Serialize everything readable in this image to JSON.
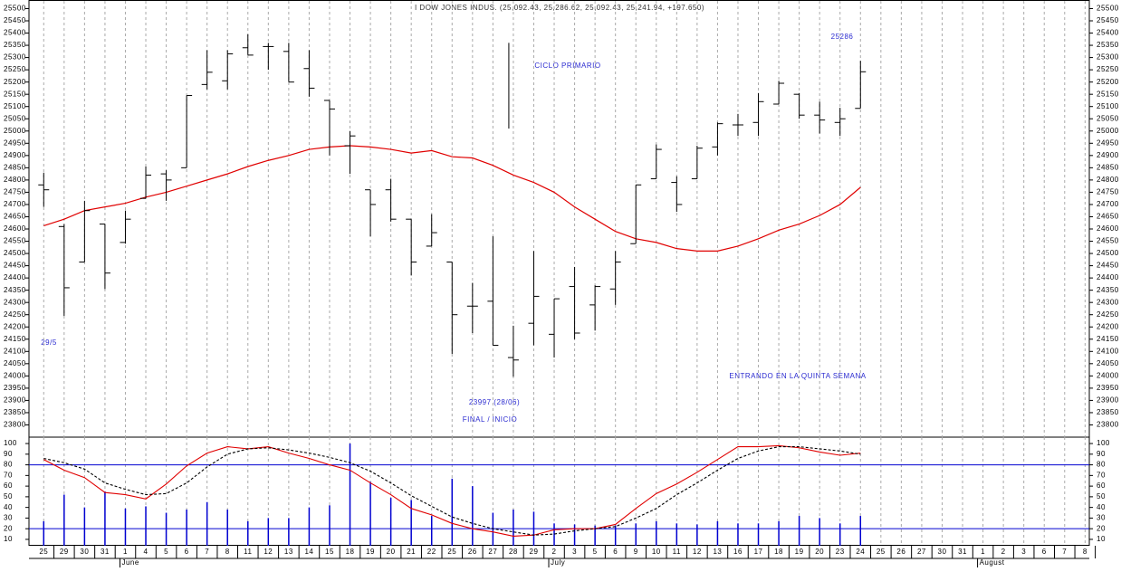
{
  "chart_data": [
    {
      "type": "ohlc",
      "title": "I DOW JONES INDUS. (25,092.43, 25,286.62, 25,092.43, 25,241.94, +197.650)",
      "annotations": [
        "25286",
        "CICLO PRIMARIO",
        "29/5",
        "23997 (28/06)",
        "FINAL / INICIO",
        "ENTRANDO EN LA QUINTA SEMANA"
      ],
      "categories": [
        "25",
        "29",
        "30",
        "31",
        "1",
        "4",
        "5",
        "6",
        "7",
        "8",
        "11",
        "12",
        "13",
        "14",
        "15",
        "18",
        "19",
        "20",
        "21",
        "22",
        "25",
        "26",
        "27",
        "28",
        "29",
        "2",
        "3",
        "5",
        "6",
        "9",
        "10",
        "11",
        "12",
        "13",
        "16",
        "17",
        "18",
        "19",
        "20",
        "23",
        "24",
        "25",
        "26",
        "27",
        "30",
        "31",
        "1",
        "2",
        "3",
        "6",
        "7",
        "8"
      ],
      "months": [
        null,
        null,
        null,
        null,
        "June",
        null,
        null,
        null,
        null,
        null,
        null,
        null,
        null,
        null,
        null,
        null,
        null,
        null,
        null,
        null,
        null,
        null,
        null,
        null,
        null,
        "July",
        null,
        null,
        null,
        null,
        null,
        null,
        null,
        null,
        null,
        null,
        null,
        null,
        null,
        null,
        null,
        null,
        null,
        null,
        null,
        null,
        "August",
        null,
        null,
        null,
        null,
        null
      ],
      "open": [
        24780,
        24610,
        24465,
        24620,
        24545,
        24725,
        24825,
        24850,
        25190,
        25205,
        25340,
        25345,
        25325,
        25255,
        25125,
        24940,
        24760,
        24760,
        24640,
        24530,
        24465,
        24285,
        24305,
        24075,
        24215,
        24170,
        24365,
        24290,
        24355,
        24540,
        24805,
        24790,
        24805,
        24935,
        25025,
        25035,
        25110,
        25150,
        25065,
        25035,
        25092.43,
        null,
        null,
        null,
        null,
        null,
        null,
        null,
        null,
        null,
        null,
        null
      ],
      "high": [
        24830,
        24620,
        24715,
        24620,
        24675,
        24855,
        24840,
        25145,
        25330,
        25330,
        25395,
        25360,
        25360,
        25330,
        25125,
        25000,
        24760,
        24805,
        24640,
        24660,
        24465,
        24380,
        24570,
        24205,
        24510,
        24315,
        24445,
        24370,
        24510,
        24780,
        24945,
        24815,
        24940,
        25035,
        25070,
        25155,
        25205,
        25155,
        25120,
        25095,
        25286.62,
        null,
        null,
        null,
        null,
        null,
        null,
        null,
        null,
        null,
        null,
        null
      ],
      "low": [
        24690,
        24245,
        24465,
        24355,
        24540,
        24725,
        24715,
        24850,
        25170,
        25170,
        25310,
        25250,
        25200,
        25140,
        24900,
        24825,
        24570,
        24630,
        24410,
        24530,
        24090,
        24175,
        24125,
        23997,
        24125,
        24075,
        24150,
        24185,
        24290,
        24540,
        24805,
        24670,
        24805,
        24900,
        24980,
        24980,
        25110,
        25050,
        24990,
        24980,
        25092.43,
        null,
        null,
        null,
        null,
        null,
        null,
        null,
        null,
        null,
        null,
        null
      ],
      "close": [
        24760,
        24360,
        24675,
        24420,
        24640,
        24820,
        24800,
        25145,
        25240,
        25315,
        25310,
        25345,
        25200,
        25175,
        25090,
        24980,
        24700,
        24640,
        24465,
        24585,
        24250,
        24285,
        24125,
        24065,
        24325,
        24315,
        24175,
        24365,
        24465,
        24780,
        24925,
        24700,
        24930,
        25030,
        25025,
        25120,
        25195,
        25065,
        25045,
        25050,
        25241.94,
        null,
        null,
        null,
        null,
        null,
        null,
        null,
        null,
        null,
        null,
        null
      ],
      "bar_color": "#000000",
      "moving_average": {
        "color": "#e00000",
        "values": [
          24613,
          24640,
          24675,
          24690,
          24705,
          24730,
          24750,
          24775,
          24800,
          24825,
          24855,
          24880,
          24900,
          24925,
          24935,
          24940,
          24935,
          24925,
          24910,
          24920,
          24895,
          24890,
          24860,
          24820,
          24790,
          24750,
          24690,
          24640,
          24590,
          24560,
          24545,
          24520,
          24510,
          24510,
          24530,
          24560,
          24595,
          24620,
          24655,
          24700,
          24770,
          null,
          null,
          null,
          null,
          null,
          null,
          null,
          null,
          null,
          null,
          null
        ]
      },
      "cycle_line": {
        "category_index": 23,
        "values": [
          25010,
          25360
        ],
        "color": "#000000"
      },
      "annotation_color": "#2a2ad0",
      "ylim": [
        23750,
        25535
      ],
      "yticks": [
        23800,
        23850,
        23900,
        23950,
        24000,
        24050,
        24100,
        24150,
        24200,
        24250,
        24300,
        24350,
        24400,
        24450,
        24500,
        24550,
        24600,
        24650,
        24700,
        24750,
        24800,
        24850,
        24900,
        24950,
        25000,
        25050,
        25100,
        25150,
        25200,
        25250,
        25300,
        25350,
        25400,
        25450,
        25500
      ],
      "grid": true
    },
    {
      "type": "oscillator",
      "ylim": [
        4,
        106
      ],
      "yticks": [
        10,
        20,
        30,
        40,
        50,
        60,
        70,
        80,
        90,
        100
      ],
      "reference_lines": [
        20,
        80
      ],
      "reference_color": "#0000d0",
      "bars": {
        "color": "#0000d0",
        "values": [
          27,
          52,
          40,
          55,
          39,
          41,
          35,
          38,
          45,
          38,
          27,
          30,
          30,
          40,
          42,
          100,
          64,
          49,
          47,
          32,
          67,
          60,
          35,
          38,
          36,
          25,
          24,
          23,
          23,
          25,
          27,
          25,
          24,
          27,
          25,
          25,
          27,
          32,
          30,
          25,
          32,
          null,
          null,
          null,
          null,
          null,
          null,
          null,
          null,
          null,
          null,
          null
        ]
      },
      "series": [
        {
          "color": "#e00000",
          "dashed": false,
          "values": [
            85,
            75,
            68,
            54,
            52,
            48,
            62,
            79,
            91,
            97,
            95,
            97,
            91,
            86,
            80,
            75,
            63,
            52,
            39,
            33,
            25,
            20,
            17,
            13,
            14,
            19,
            20,
            20,
            24,
            39,
            53,
            62,
            73,
            85,
            97,
            97,
            98,
            96,
            92,
            89,
            91,
            null,
            null,
            null,
            null,
            null,
            null,
            null,
            null,
            null,
            null,
            null
          ]
        },
        {
          "color": "#000000",
          "dashed": true,
          "values": [
            86,
            82,
            76,
            63,
            57,
            52,
            53,
            63,
            78,
            90,
            95,
            96,
            94,
            91,
            87,
            82,
            74,
            63,
            51,
            41,
            31,
            25,
            20,
            17,
            14,
            15,
            18,
            20,
            22,
            30,
            39,
            52,
            63,
            75,
            86,
            93,
            97,
            97,
            95,
            93,
            90,
            null,
            null,
            null,
            null,
            null,
            null,
            null,
            null,
            null,
            null,
            null
          ]
        }
      ],
      "grid": true
    }
  ]
}
